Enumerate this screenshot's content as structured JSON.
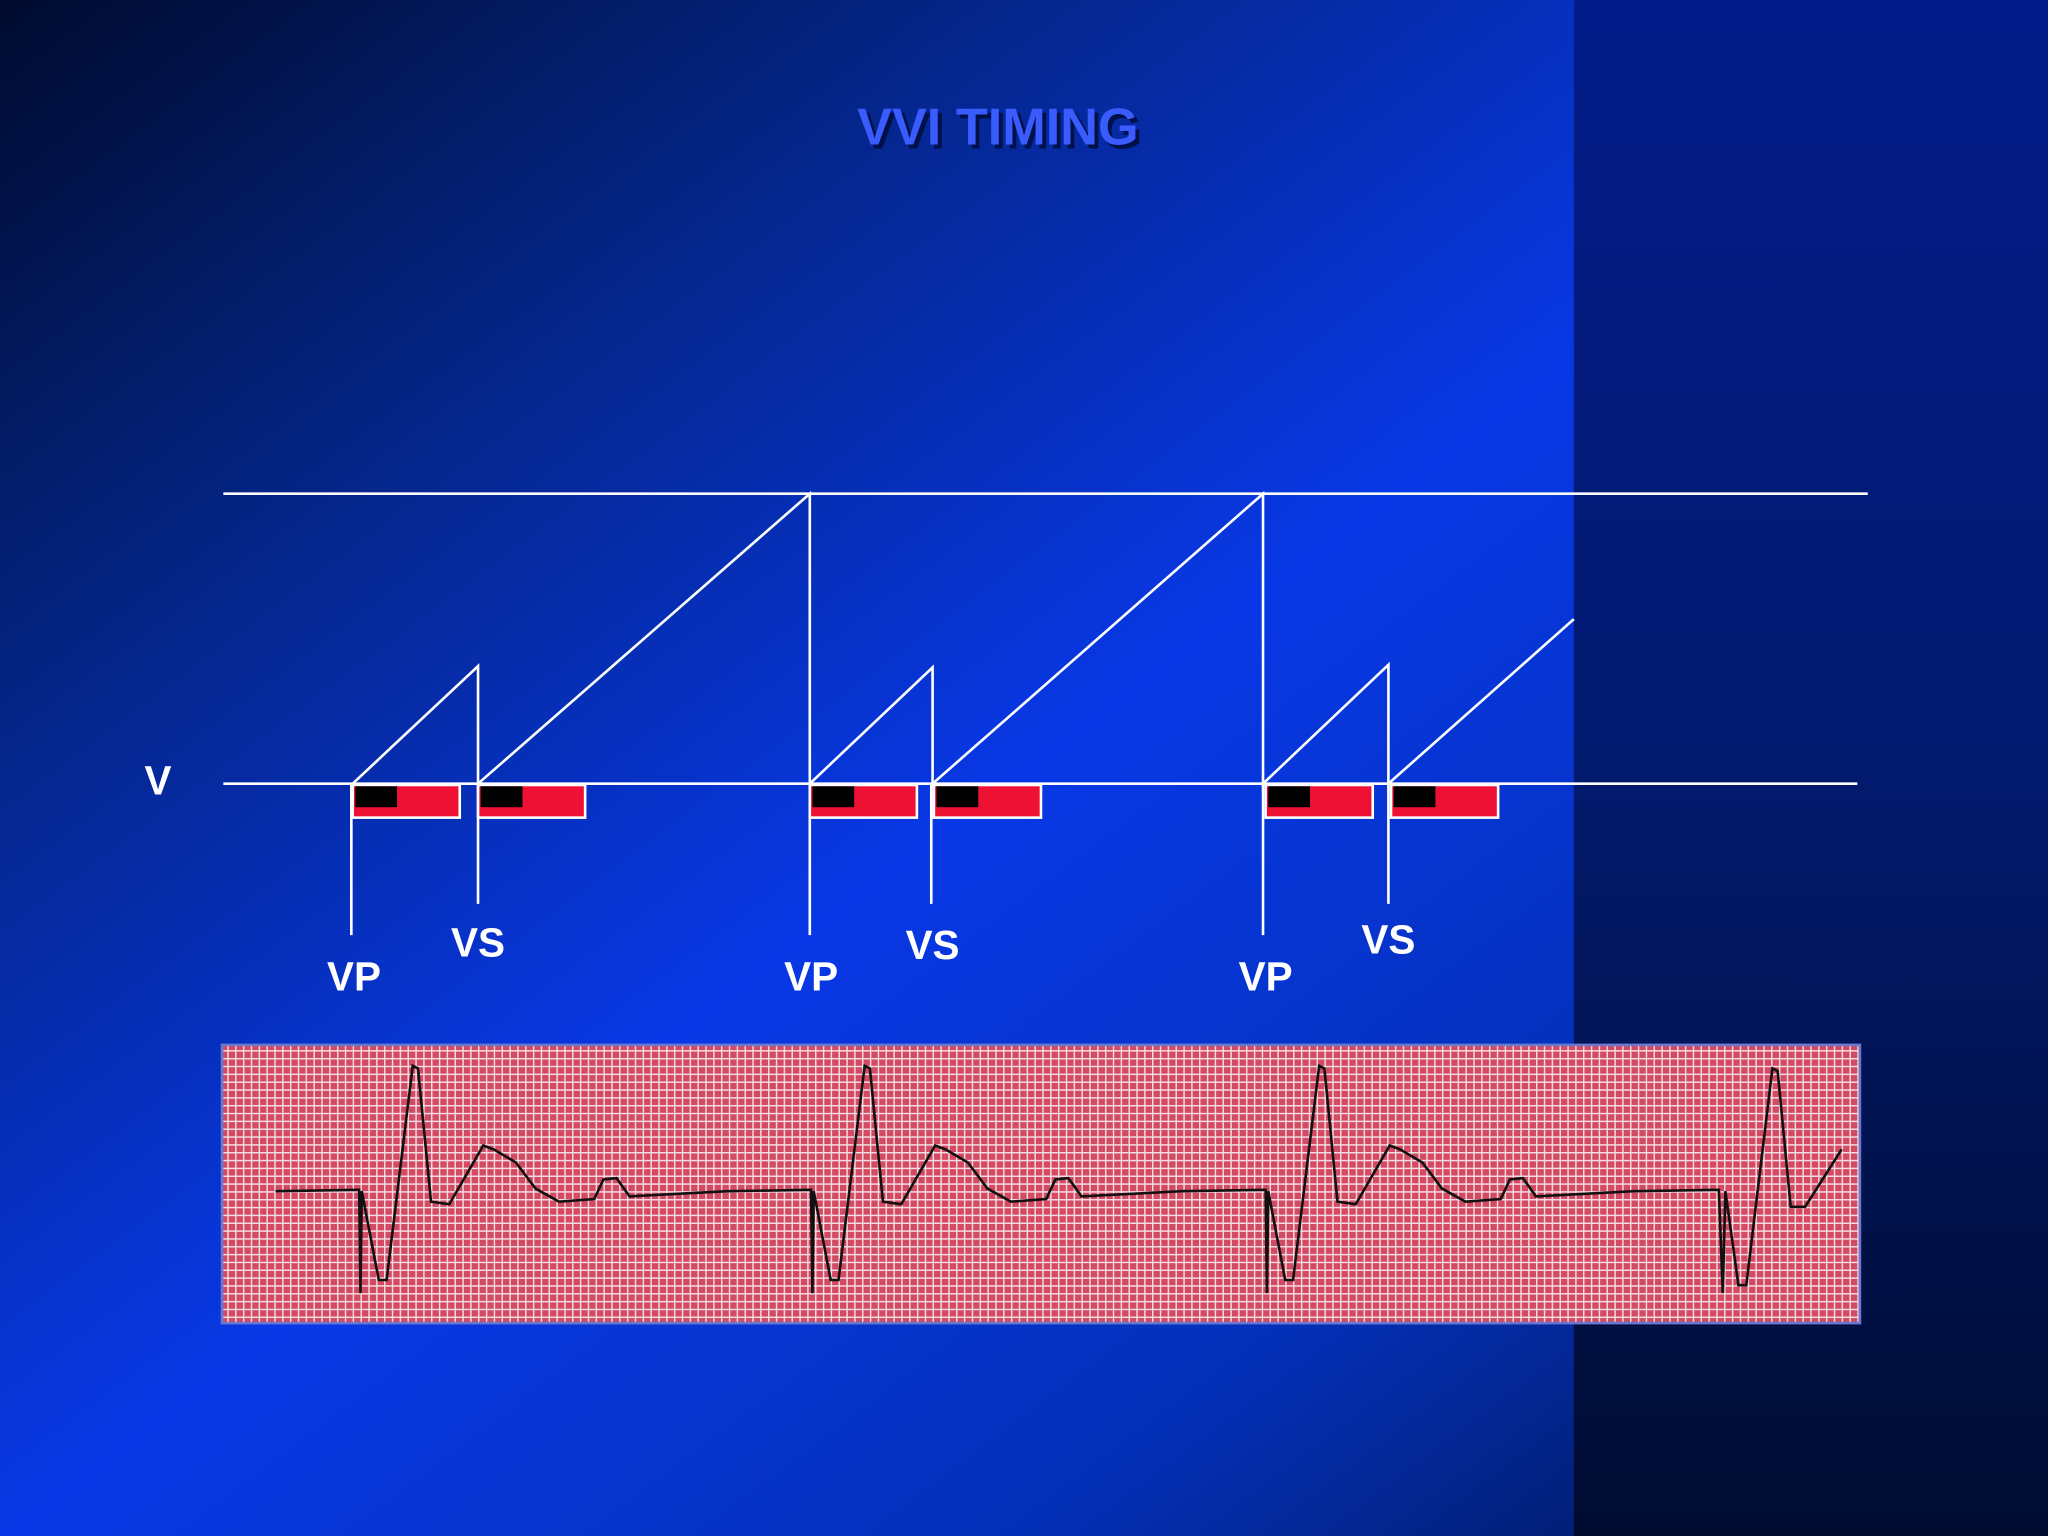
{
  "title": "VVI  TIMING",
  "channel_label": "V",
  "events": [
    {
      "label": "VP"
    },
    {
      "label": "VS"
    },
    {
      "label": "VP"
    },
    {
      "label": "VS"
    },
    {
      "label": "VP"
    },
    {
      "label": "VS"
    }
  ]
}
